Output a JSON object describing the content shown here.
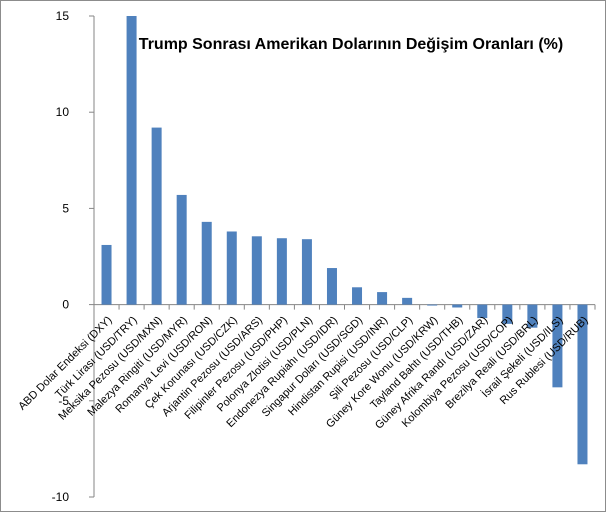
{
  "chart_data": {
    "type": "bar",
    "title": "Trump Sonrası Amerikan Dolarının Değişim Oranları (%)",
    "xlabel": "",
    "ylabel": "",
    "ylim": [
      -10,
      15
    ],
    "yticks": [
      -10,
      -5,
      0,
      5,
      10,
      15
    ],
    "grid": false,
    "bar_color": "#4F81BD",
    "categories": [
      "ABD Dolar Endeksi (DXY)",
      "Türk Lirası (USD/TRY)",
      "Meksika Pezosu (USD/MXN)",
      "Malezya Ringiti (USD/MYR)",
      "Romanya Levi (USD/RON)",
      "Çek Korunası (USD/CZK)",
      "Arjantin Pezosu (USD/ARS)",
      "Filipinler Pezosu (USD/PHP)",
      "Polonya Zlotisi (USD/PLN)",
      "Endonezya Rupiahı (USD/IDR)",
      "Singapur Doları (USD/SGD)",
      "Hindistan Rupisi (USD/INR)",
      "Şili Pezosu (USD/CLP)",
      "Güney Kore Wonu (USD/KRW)",
      "Tayland Bahtı (USD/THB)",
      "Güney Afrika Randı (USD/ZAR)",
      "Kolombiya Pezosu (USD/COP)",
      "Brezilya Reali (USD/BRL)",
      "İsrail Şekeli (USD/ILS)",
      "Rus Rublesi (USD/RUB)"
    ],
    "values": [
      3.1,
      15.0,
      9.2,
      5.7,
      4.3,
      3.8,
      3.55,
      3.45,
      3.4,
      1.9,
      0.9,
      0.65,
      0.35,
      -0.05,
      -0.15,
      -0.7,
      -1.0,
      -1.2,
      -4.3,
      -8.3
    ]
  }
}
